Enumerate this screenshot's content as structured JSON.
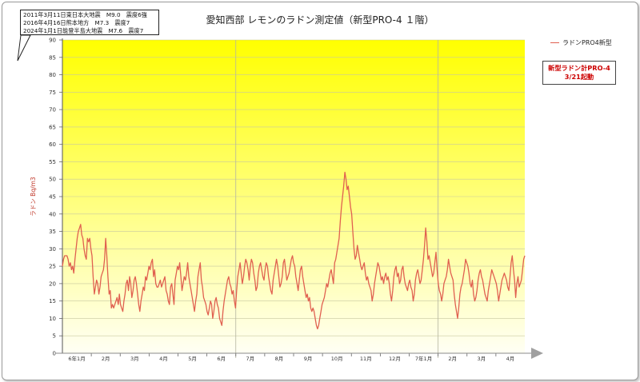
{
  "chart_data": {
    "type": "line",
    "title": "愛知西部 レモンのラドン測定値（新型PRO-4 １階）",
    "ylabel": "ラドン Bq/m3",
    "xlabel": "",
    "ylim": [
      0,
      90
    ],
    "yticks": [
      0,
      5,
      10,
      15,
      20,
      25,
      30,
      35,
      40,
      45,
      50,
      55,
      60,
      65,
      70,
      75,
      80,
      85,
      90
    ],
    "x_tick_labels": [
      "6年1月",
      "2月",
      "3月",
      "4月",
      "5月",
      "6月",
      "7月",
      "8月",
      "9月",
      "10月",
      "11月",
      "12月",
      "7年1月",
      "2月",
      "3月",
      "4月"
    ],
    "grid": true,
    "legend_position": "top-right",
    "series": [
      {
        "name": "ラドンPRO4新型",
        "color": "#e06050",
        "values": [
          25,
          27,
          28,
          28,
          28,
          27,
          25,
          26,
          24,
          25,
          23,
          27,
          30,
          33,
          35,
          36,
          37,
          34,
          33,
          30,
          28,
          27,
          33,
          32,
          33,
          30,
          28,
          22,
          17,
          19,
          21,
          20,
          17,
          19,
          22,
          23,
          24,
          27,
          33,
          28,
          22,
          17,
          18,
          13,
          14,
          13,
          14,
          15,
          16,
          14,
          17,
          14,
          13,
          12,
          15,
          17,
          20,
          21,
          18,
          22,
          20,
          16,
          18,
          21,
          22,
          20,
          17,
          14,
          12,
          15,
          17,
          19,
          18,
          22,
          21,
          23,
          25,
          24,
          26,
          27,
          22,
          24,
          20,
          19,
          19,
          20,
          21,
          19,
          20,
          21,
          22,
          18,
          17,
          15,
          14,
          19,
          20,
          17,
          14,
          21,
          23,
          25,
          24,
          26,
          22,
          18,
          20,
          22,
          21,
          23,
          26,
          22,
          20,
          18,
          16,
          14,
          12,
          15,
          17,
          22,
          24,
          26,
          21,
          19,
          16,
          15,
          14,
          12,
          11,
          13,
          15,
          14,
          10,
          12,
          15,
          16,
          14,
          13,
          10,
          9,
          8,
          12,
          15,
          17,
          19,
          21,
          22,
          20,
          19,
          17,
          18,
          15,
          13,
          18,
          22,
          24,
          26,
          23,
          20,
          22,
          25,
          27,
          26,
          24,
          21,
          25,
          27,
          26,
          23,
          21,
          18,
          19,
          23,
          25,
          26,
          24,
          22,
          21,
          24,
          26,
          25,
          22,
          20,
          18,
          17,
          21,
          23,
          25,
          27,
          25,
          22,
          19,
          20,
          22,
          26,
          27,
          24,
          21,
          22,
          23,
          25,
          27,
          28,
          26,
          25,
          22,
          20,
          18,
          21,
          24,
          25,
          22,
          20,
          18,
          16,
          17,
          15,
          16,
          13,
          12,
          13,
          12,
          10,
          8,
          7,
          8,
          10,
          12,
          14,
          15,
          16,
          18,
          20,
          19,
          21,
          23,
          24,
          22,
          20,
          26,
          27,
          29,
          31,
          33,
          38,
          42,
          45,
          48,
          52,
          50,
          47,
          48,
          45,
          42,
          40,
          35,
          30,
          27,
          28,
          31,
          29,
          27,
          25,
          24,
          25,
          26,
          23,
          21,
          22,
          20,
          19,
          18,
          15,
          17,
          20,
          22,
          24,
          26,
          25,
          23,
          21,
          22,
          20,
          22,
          23,
          21,
          22,
          20,
          17,
          15,
          18,
          22,
          24,
          25,
          22,
          23,
          20,
          21,
          24,
          25,
          22,
          20,
          19,
          18,
          20,
          21,
          19,
          18,
          15,
          17,
          21,
          23,
          24,
          22,
          20,
          21,
          24,
          27,
          31,
          36,
          32,
          27,
          28,
          26,
          24,
          22,
          23,
          26,
          29,
          24,
          20,
          18,
          17,
          15,
          17,
          20,
          21,
          22,
          24,
          27,
          25,
          23,
          22,
          21,
          17,
          14,
          12,
          10,
          13,
          17,
          19,
          20,
          22,
          24,
          27,
          26,
          25,
          23,
          20,
          19,
          21,
          17,
          15,
          16,
          18,
          21,
          23,
          24,
          22,
          21,
          19,
          17,
          16,
          15,
          18,
          20,
          22,
          24,
          23,
          22,
          21,
          20,
          18,
          15,
          17,
          19,
          21,
          22,
          23,
          22,
          21,
          19,
          18,
          22,
          26,
          28,
          24,
          21,
          16,
          20,
          22,
          19,
          20,
          21,
          24,
          27,
          28
        ]
      }
    ],
    "box_lines": [
      "2011年3月11日東日本大地震　M9.0　震度6強",
      "2016年4月16日熊本地方　M7.3　震度7",
      "2024年1月1日能登半島大地震　M7.6　震度7"
    ],
    "note_lines": [
      "新型ラドン計PRO-4",
      "3/21起動"
    ]
  }
}
